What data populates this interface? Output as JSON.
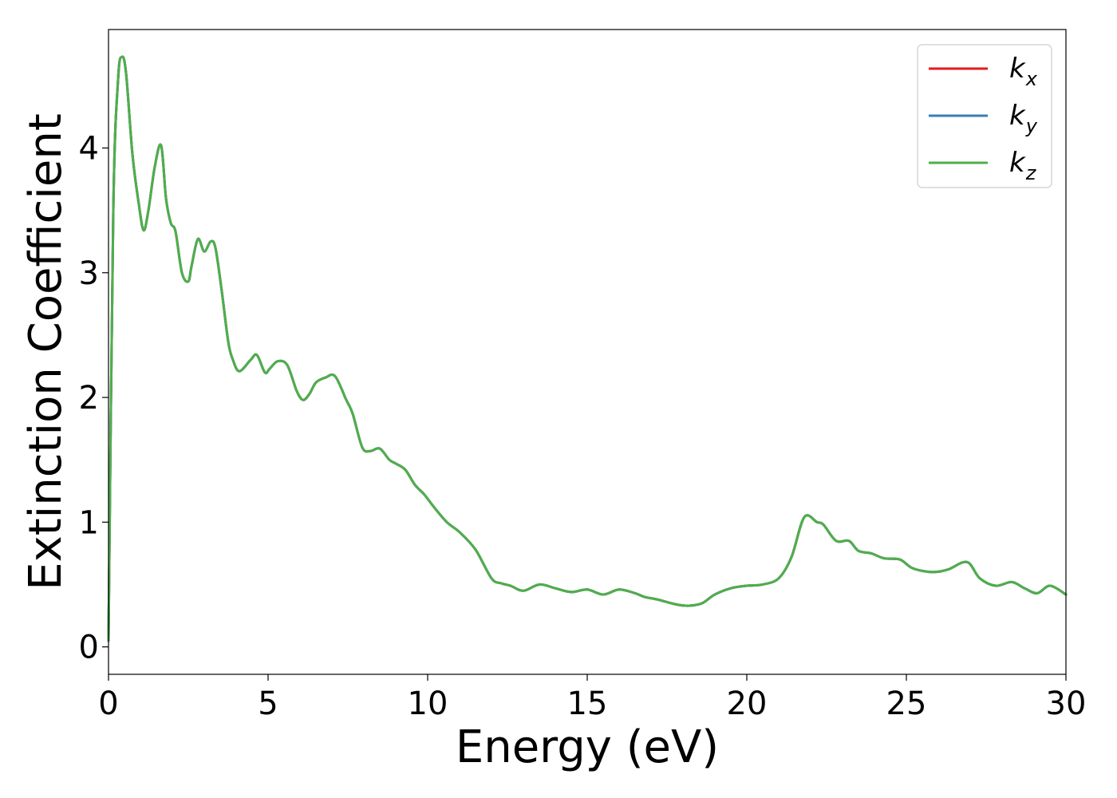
{
  "chart_data": {
    "type": "line",
    "xlabel": "Energy (eV)",
    "ylabel": "Extinction Coefficient",
    "xlim": [
      0,
      30
    ],
    "ylim": [
      -0.22,
      4.95
    ],
    "xticks": [
      0,
      5,
      10,
      15,
      20,
      25,
      30
    ],
    "yticks": [
      0,
      1,
      2,
      3,
      4
    ],
    "grid": false,
    "legend_position": "top-right",
    "series": [
      {
        "name": "k",
        "subscript": "x",
        "color": "#e41a1c"
      },
      {
        "name": "k",
        "subscript": "y",
        "color": "#377eb8"
      },
      {
        "name": "k",
        "subscript": "z",
        "color": "#4daf4a"
      }
    ],
    "x": [
      0,
      0.15,
      0.3,
      0.42,
      0.55,
      0.75,
      0.95,
      1.1,
      1.25,
      1.45,
      1.65,
      1.8,
      1.95,
      2.1,
      2.3,
      2.5,
      2.6,
      2.8,
      3.0,
      3.2,
      3.35,
      3.55,
      3.75,
      3.9,
      4.1,
      4.45,
      4.65,
      4.9,
      5.05,
      5.3,
      5.6,
      5.9,
      6.1,
      6.3,
      6.5,
      6.8,
      7.1,
      7.45,
      7.65,
      7.95,
      8.2,
      8.5,
      8.8,
      9.0,
      9.3,
      9.6,
      9.9,
      10.2,
      10.6,
      11.0,
      11.5,
      12.0,
      12.3,
      12.6,
      13.0,
      13.5,
      14.0,
      14.5,
      15.0,
      15.5,
      16.0,
      16.5,
      16.8,
      17.2,
      17.8,
      18.2,
      18.6,
      19.0,
      19.5,
      20.0,
      20.5,
      21.0,
      21.4,
      21.8,
      22.2,
      22.4,
      22.8,
      23.2,
      23.5,
      23.9,
      24.3,
      24.8,
      25.2,
      25.8,
      26.3,
      26.9,
      27.3,
      27.8,
      28.3,
      28.7,
      29.1,
      29.5,
      30.0
    ],
    "values": [
      0.05,
      3.5,
      4.55,
      4.73,
      4.6,
      3.95,
      3.55,
      3.34,
      3.5,
      3.85,
      4.02,
      3.6,
      3.4,
      3.33,
      3.0,
      2.93,
      3.05,
      3.27,
      3.17,
      3.25,
      3.2,
      2.85,
      2.45,
      2.3,
      2.21,
      2.3,
      2.34,
      2.2,
      2.23,
      2.29,
      2.26,
      2.05,
      1.98,
      2.03,
      2.12,
      2.16,
      2.17,
      1.98,
      1.87,
      1.6,
      1.57,
      1.59,
      1.5,
      1.47,
      1.42,
      1.3,
      1.22,
      1.12,
      1.0,
      0.92,
      0.78,
      0.55,
      0.51,
      0.49,
      0.45,
      0.5,
      0.47,
      0.44,
      0.46,
      0.42,
      0.46,
      0.43,
      0.4,
      0.38,
      0.34,
      0.33,
      0.35,
      0.42,
      0.47,
      0.49,
      0.5,
      0.55,
      0.72,
      1.04,
      1.0,
      0.98,
      0.85,
      0.85,
      0.77,
      0.75,
      0.71,
      0.7,
      0.63,
      0.6,
      0.62,
      0.68,
      0.55,
      0.49,
      0.52,
      0.47,
      0.43,
      0.49,
      0.42
    ]
  }
}
